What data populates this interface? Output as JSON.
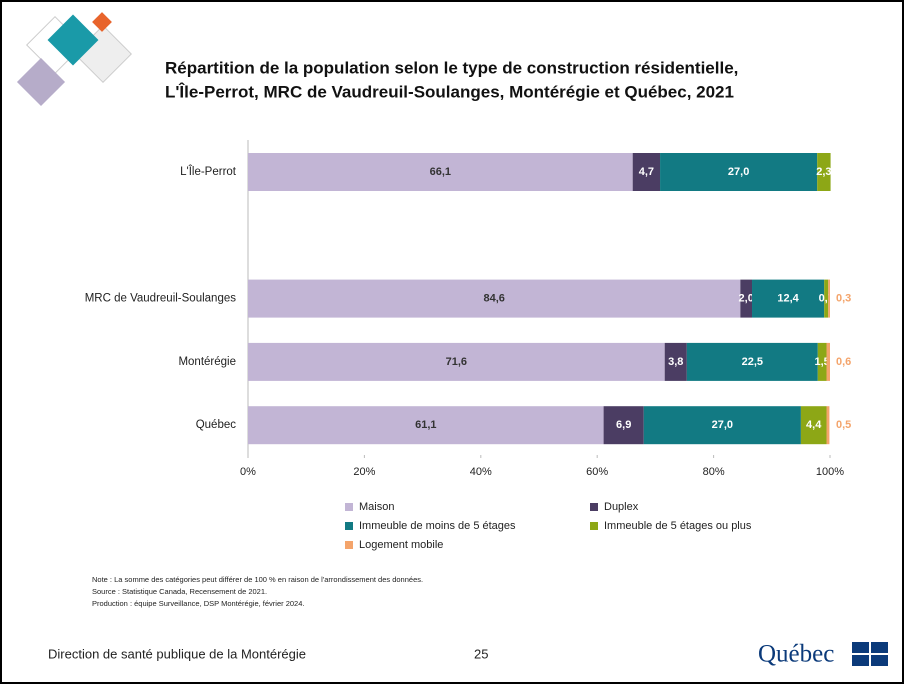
{
  "chart_data": {
    "type": "stacked-bar-horizontal",
    "title": [
      "Répartition de la population selon le type de construction résidentielle,",
      "L'Île-Perrot, MRC de Vaudreuil-Soulanges, Montérégie et Québec, 2021"
    ],
    "categories": [
      "L'Île-Perrot",
      null,
      "MRC de Vaudreuil-Soulanges",
      "Montérégie",
      "Québec"
    ],
    "series": [
      {
        "name": "Maison",
        "color": "#c2b5d5",
        "values": [
          66.1,
          null,
          84.6,
          71.6,
          61.1
        ],
        "value_labels": [
          "66,1",
          null,
          "84,6",
          "71,6",
          "61,1"
        ]
      },
      {
        "name": "Duplex",
        "color": "#4b3d63",
        "values": [
          4.7,
          null,
          2.0,
          3.8,
          6.9
        ],
        "value_labels": [
          "4,7",
          null,
          "2,0",
          "3,8",
          "6,9"
        ]
      },
      {
        "name": "Immeuble de moins de 5 étages",
        "color": "#127a83",
        "values": [
          27.0,
          null,
          12.4,
          22.5,
          27.0
        ],
        "value_labels": [
          "27,0",
          null,
          "12,4",
          "22,5",
          "27,0"
        ]
      },
      {
        "name": "Immeuble de 5 étages ou plus",
        "color": "#8da716",
        "values": [
          2.3,
          null,
          0.7,
          1.5,
          4.4
        ],
        "value_labels": [
          "2,3",
          null,
          "0,7",
          "1,5",
          "4,4"
        ]
      },
      {
        "name": "Logement mobile",
        "color": "#f4a46b",
        "values": [
          null,
          null,
          0.3,
          0.6,
          0.5
        ],
        "value_labels": [
          null,
          null,
          "0,3",
          "0,6",
          "0,5"
        ]
      }
    ],
    "xlim": [
      0,
      100
    ],
    "xticks": [
      {
        "value": 0,
        "label": "0%"
      },
      {
        "value": 20,
        "label": "20%"
      },
      {
        "value": 40,
        "label": "40%"
      },
      {
        "value": 60,
        "label": "60%"
      },
      {
        "value": 80,
        "label": "80%"
      },
      {
        "value": 100,
        "label": "100%"
      }
    ],
    "grid": false
  },
  "notes": [
    "Note : La somme des catégories peut différer de 100 % en raison de l'arrondissement des données.",
    "Source : Statistique Canada, Recensement de 2021.",
    "Production : équipe Surveillance, DSP Montérégie, février 2024."
  ],
  "footer": {
    "organization": "Direction de santé publique de la Montérégie",
    "page": "25",
    "logo": "Québec"
  }
}
